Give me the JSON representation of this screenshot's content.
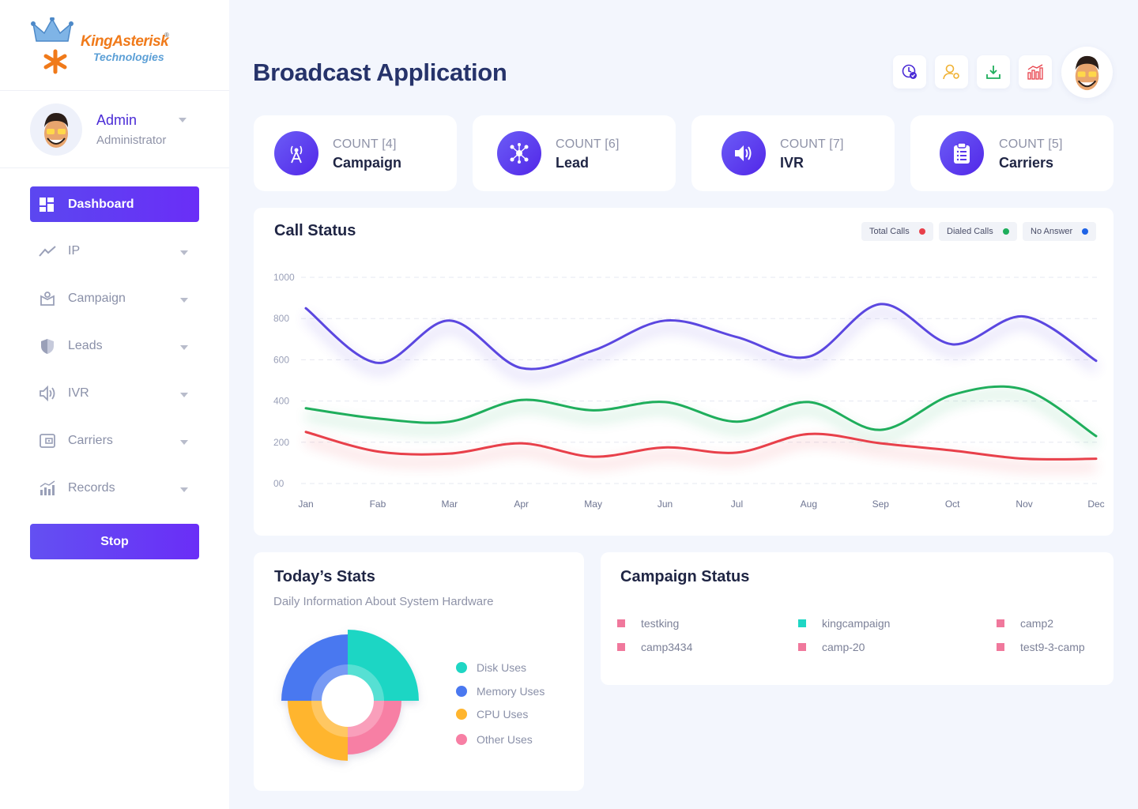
{
  "brand": {
    "line1": "KingAsterisk",
    "registered": "®",
    "line2": "Technologies"
  },
  "profile": {
    "name": "Admin",
    "role": "Administrator"
  },
  "sidebar": {
    "active": {
      "label": "Dashboard",
      "icon": "dashboard-icon"
    },
    "items": [
      {
        "label": "IP",
        "icon": "trend-line-icon"
      },
      {
        "label": "Campaign",
        "icon": "campaign-box-icon"
      },
      {
        "label": "Leads",
        "icon": "shield-icon"
      },
      {
        "label": "IVR",
        "icon": "speaker-icon"
      },
      {
        "label": "Carriers",
        "icon": "wallet-icon"
      },
      {
        "label": "Records",
        "icon": "bar-chart-icon"
      }
    ],
    "stop_label": "Stop"
  },
  "header": {
    "title": "Broadcast Application",
    "buttons": [
      "clock-check-icon",
      "user-settings-icon",
      "download-icon",
      "stats-icon"
    ]
  },
  "cards": [
    {
      "count": "COUNT [4]",
      "label": "Campaign",
      "icon": "antenna-icon"
    },
    {
      "count": "COUNT [6]",
      "label": "Lead",
      "icon": "network-icon"
    },
    {
      "count": "COUNT [7]",
      "label": "IVR",
      "icon": "speaker-icon"
    },
    {
      "count": "COUNT [5]",
      "label": "Carriers",
      "icon": "clipboard-icon"
    }
  ],
  "call_status": {
    "title": "Call Status",
    "legend": [
      {
        "name": "Total Calls",
        "color": "#e8404a"
      },
      {
        "name": "Dialed Calls",
        "color": "#1fae5c"
      },
      {
        "name": "No Answer",
        "color": "#1f63e6"
      }
    ]
  },
  "chart_data": {
    "type": "line",
    "title": "Call Status",
    "categories": [
      "Jan",
      "Fab",
      "Mar",
      "Apr",
      "May",
      "Jun",
      "Jul",
      "Aug",
      "Sep",
      "Oct",
      "Nov",
      "Dec"
    ],
    "y_ticks": [
      "00",
      "200",
      "400",
      "600",
      "800",
      "1000"
    ],
    "ylim": [
      0,
      1000
    ],
    "grid": true,
    "legend_position": "top-right",
    "series": [
      {
        "color": "#5b47e0",
        "values": [
          850,
          585,
          790,
          560,
          645,
          790,
          710,
          615,
          870,
          675,
          810,
          595
        ]
      },
      {
        "color": "#1fae5c",
        "values": [
          365,
          315,
          300,
          405,
          355,
          395,
          300,
          395,
          260,
          430,
          455,
          230
        ]
      },
      {
        "color": "#e8404a",
        "values": [
          250,
          155,
          145,
          195,
          130,
          175,
          150,
          240,
          195,
          160,
          120,
          120
        ]
      }
    ]
  },
  "today_stats": {
    "title": "Today’s Stats",
    "subtitle": "Daily Information About System Hardware",
    "legend": [
      {
        "label": "Disk Uses",
        "color": "#1fd6c4"
      },
      {
        "label": "Memory Uses",
        "color": "#4a78f0"
      },
      {
        "label": "CPU Uses",
        "color": "#ffb52e"
      },
      {
        "label": "Other Uses",
        "color": "#f77fa4"
      }
    ]
  },
  "campaign_status": {
    "title": "Campaign Status",
    "items": [
      {
        "name": "testking",
        "color": "#f0789c"
      },
      {
        "name": "kingcampaign",
        "color": "#1fd6c4"
      },
      {
        "name": "camp2",
        "color": "#f0789c"
      },
      {
        "name": "camp3434",
        "color": "#f0789c"
      },
      {
        "name": "camp-20",
        "color": "#f0789c"
      },
      {
        "name": "test9-3-camp",
        "color": "#f0789c"
      }
    ]
  }
}
